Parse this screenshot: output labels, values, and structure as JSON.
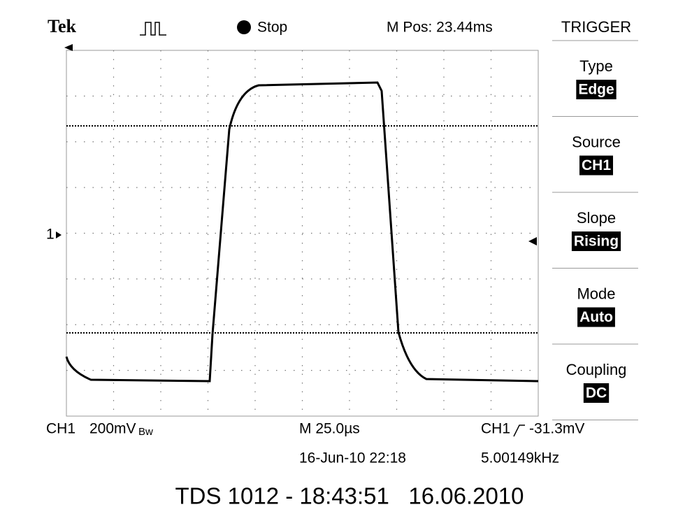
{
  "header": {
    "brand": "Tek",
    "state": "Stop",
    "position": "M Pos: 23.44ms",
    "menu_title": "TRIGGER"
  },
  "channel_marker": "1",
  "menu": [
    {
      "label": "Type",
      "value": "Edge"
    },
    {
      "label": "Source",
      "value": "CH1"
    },
    {
      "label": "Slope",
      "value": "Rising"
    },
    {
      "label": "Mode",
      "value": "Auto"
    },
    {
      "label": "Coupling",
      "value": "DC"
    }
  ],
  "readout": {
    "channel": "CH1",
    "scale": "200mV",
    "bandwidth": "Bw",
    "timebase": "M 25.0µs",
    "date": "16-Jun-10 22:18",
    "trigger_channel": "CH1",
    "trigger_level": "-31.3mV",
    "frequency": "5.00149kHz"
  },
  "caption": "TDS 1012 - 18:43:51   16.06.2010"
}
